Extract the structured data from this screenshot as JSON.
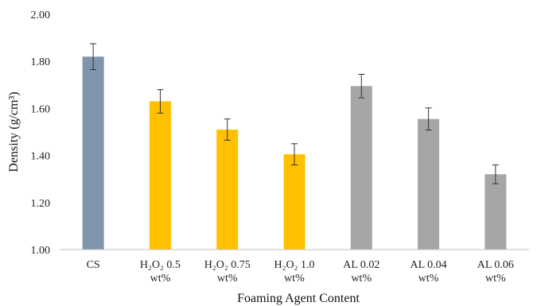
{
  "chart_data": {
    "type": "bar",
    "title": "",
    "xlabel": "Foaming Agent Content",
    "ylabel": "Density (g/cm³)",
    "ylim": [
      1.0,
      2.0
    ],
    "yticks": [
      "1.00",
      "1.20",
      "1.40",
      "1.60",
      "1.80",
      "2.00"
    ],
    "grid": false,
    "legend": "none",
    "categories": [
      [
        "CS"
      ],
      [
        "H₂O₂ 0.5",
        "wt%"
      ],
      [
        "H₂O₂ 0.75",
        "wt%"
      ],
      [
        "H₂O₂ 1.0",
        "wt%"
      ],
      [
        "AL 0.02",
        "wt%"
      ],
      [
        "AL 0.04",
        "wt%"
      ],
      [
        "AL 0.06",
        "wt%"
      ]
    ],
    "values": [
      1.82,
      1.63,
      1.51,
      1.405,
      1.695,
      1.555,
      1.32
    ],
    "errors": [
      0.055,
      0.05,
      0.045,
      0.045,
      0.05,
      0.047,
      0.04
    ],
    "colors": [
      "#7f94ad",
      "#ffc000",
      "#ffc000",
      "#ffc000",
      "#a6a6a6",
      "#a6a6a6",
      "#a6a6a6"
    ]
  }
}
